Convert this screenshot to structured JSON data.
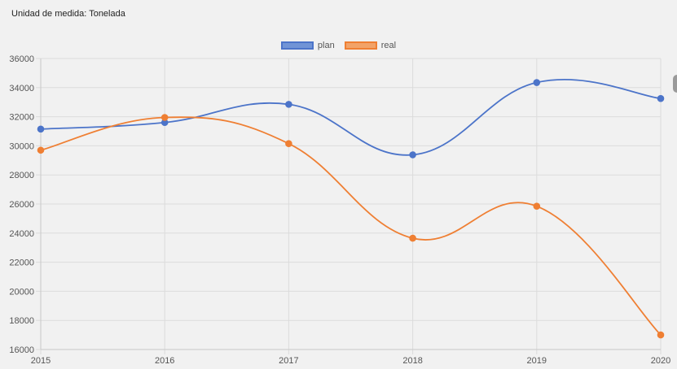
{
  "header": {
    "unit_label": "Unidad de medida: Tonelada"
  },
  "colors": {
    "plan": "#4c74c9",
    "real": "#ef7f33",
    "plan_fill": "#7194d6",
    "real_fill": "#f2a368",
    "grid": "#dcdcdc",
    "axis_text": "#555555"
  },
  "chart_data": {
    "type": "line",
    "categories": [
      "2015",
      "2016",
      "2017",
      "2018",
      "2019",
      "2020"
    ],
    "series": [
      {
        "name": "plan",
        "values": [
          31150,
          31600,
          32850,
          29380,
          34350,
          33250
        ]
      },
      {
        "name": "real",
        "values": [
          29700,
          31950,
          30150,
          23650,
          25850,
          17000
        ]
      }
    ],
    "title": "",
    "xlabel": "",
    "ylabel": "",
    "ylim": [
      16000,
      36000
    ],
    "yticks": [
      "16000",
      "18000",
      "20000",
      "22000",
      "24000",
      "26000",
      "28000",
      "30000",
      "32000",
      "34000",
      "36000"
    ],
    "grid": true,
    "legend_position": "top-center",
    "curve": "smooth"
  }
}
